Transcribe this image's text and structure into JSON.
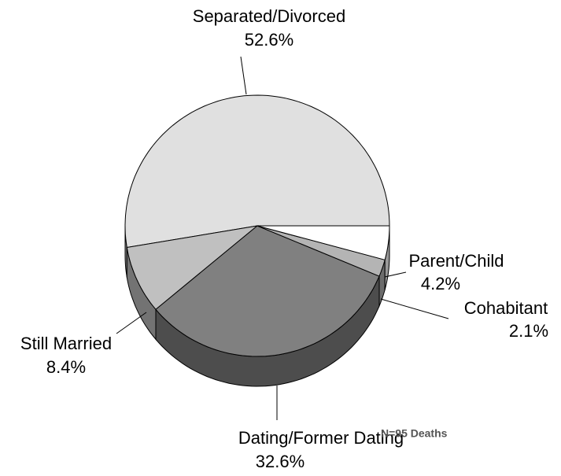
{
  "chart_data": {
    "type": "pie",
    "categories": [
      "Separated/Divorced",
      "Still Married",
      "Dating/Former Dating",
      "Cohabitant",
      "Parent/Child"
    ],
    "values": [
      52.6,
      8.4,
      32.6,
      2.1,
      4.2
    ],
    "value_labels": [
      "52.6%",
      "8.4%",
      "32.6%",
      "2.1%",
      "4.2%"
    ],
    "colors": [
      "#e0e0e0",
      "#c0c0c0",
      "#808080",
      "#b4b4b4",
      "#ffffff"
    ],
    "annotation": "N=95 Deaths"
  }
}
